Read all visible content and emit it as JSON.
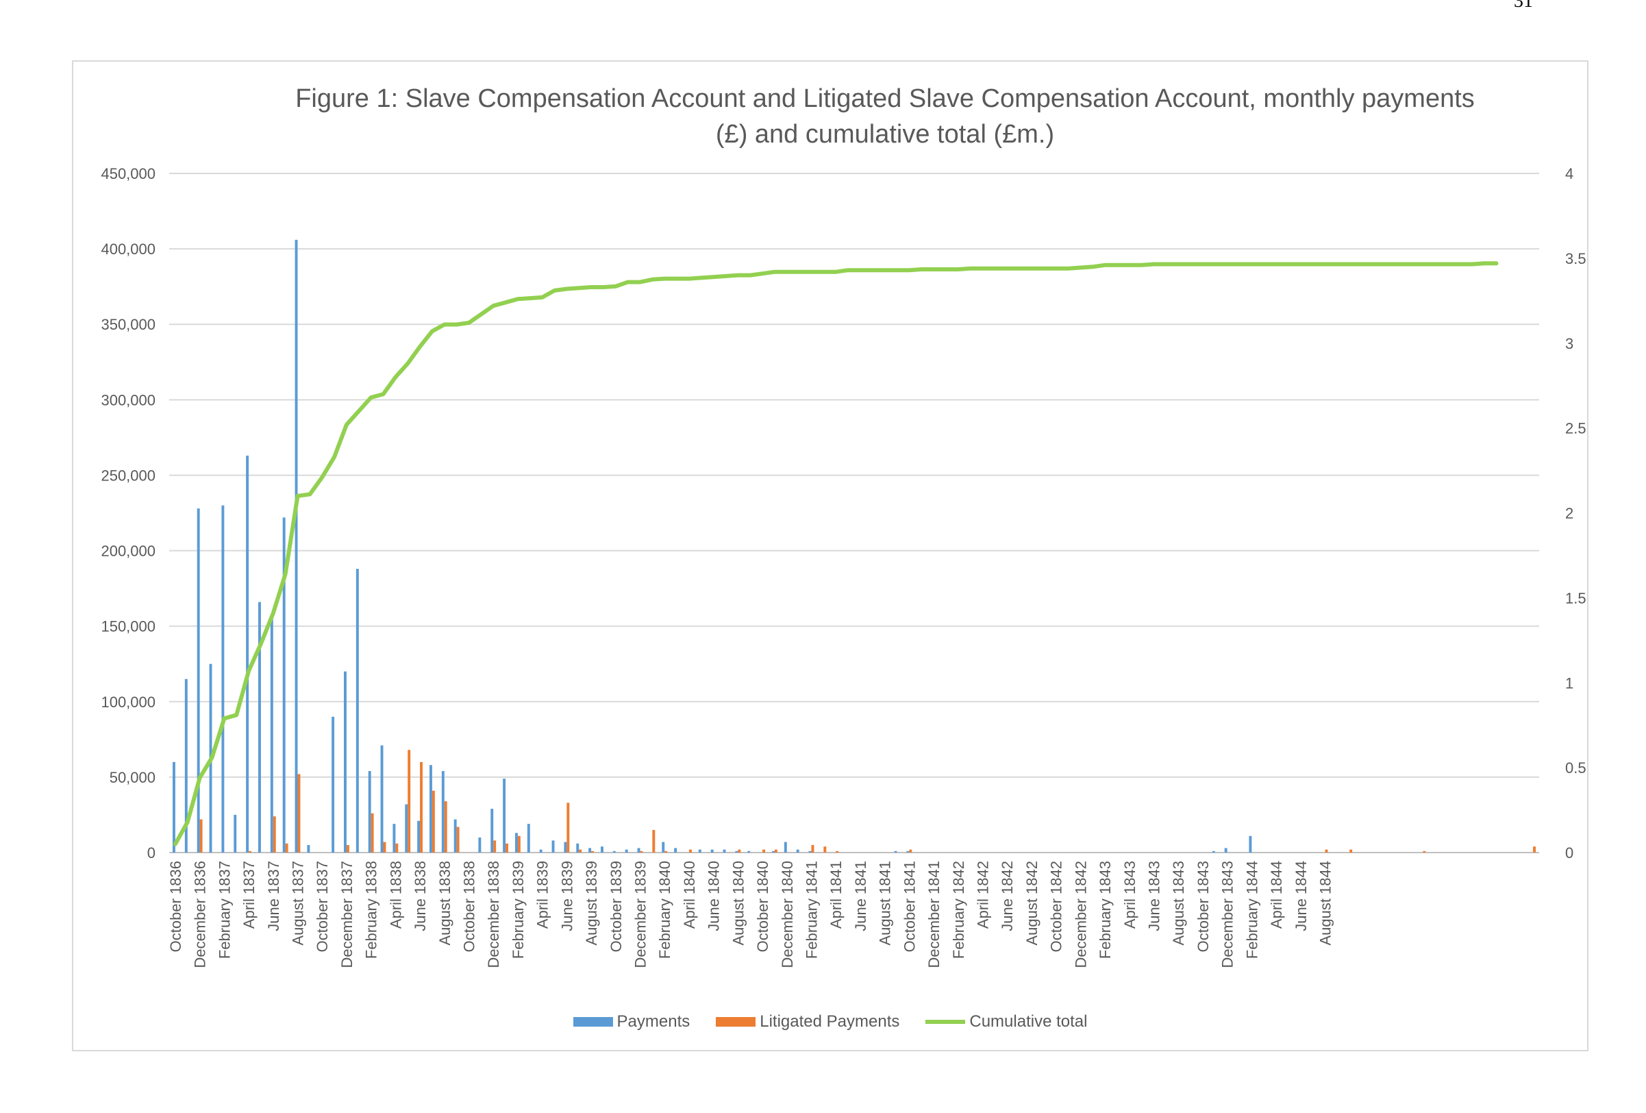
{
  "page_number": "31",
  "chart_data": {
    "type": "bar",
    "title_lines": [
      "Figure 1: Slave Compensation Account and Litigated Slave Compensation Account, monthly payments",
      "(£) and cumulative total (£m.)"
    ],
    "x_tick_labels": [
      "October 1836",
      "December 1836",
      "February 1837",
      "April 1837",
      "June 1837",
      "August 1837",
      "October 1837",
      "December 1837",
      "February 1838",
      "April 1838",
      "June 1838",
      "August 1838",
      "October 1838",
      "December 1838",
      "February 1839",
      "April 1839",
      "June 1839",
      "August 1839",
      "October 1839",
      "December 1839",
      "February 1840",
      "April 1840",
      "June 1840",
      "August 1840",
      "October 1840",
      "December 1840",
      "February 1841",
      "April 1841",
      "June 1841",
      "August 1841",
      "October 1841",
      "December 1841",
      "February 1842",
      "April 1842",
      "June 1842",
      "August 1842",
      "October 1842",
      "December 1842",
      "February 1843",
      "April 1843",
      "June 1843",
      "August 1843",
      "October 1843",
      "December 1843",
      "February 1844",
      "April 1844",
      "June 1844",
      "August 1844"
    ],
    "y_left": {
      "ylim": [
        0,
        450000
      ],
      "ticks": [
        "0",
        "50,000",
        "100,000",
        "150,000",
        "200,000",
        "250,000",
        "300,000",
        "350,000",
        "400,000",
        "450,000"
      ]
    },
    "y_right": {
      "ylim": [
        0,
        4
      ],
      "ticks": [
        "0",
        "0.5",
        "1",
        "1.5",
        "2",
        "2.5",
        "3",
        "3.5",
        "4"
      ]
    },
    "grid": "horizontal",
    "legend_position": "bottom",
    "series": [
      {
        "name": "Payments",
        "type": "bar",
        "axis": "left",
        "color": "#5b9bd5",
        "values": [
          60000,
          115000,
          228000,
          125000,
          230000,
          25000,
          263000,
          166000,
          155000,
          222000,
          406000,
          5000,
          0,
          90000,
          120000,
          188000,
          54000,
          71000,
          19000,
          32000,
          21000,
          58000,
          54000,
          22000,
          0,
          10000,
          29000,
          49000,
          13000,
          19000,
          2000,
          8000,
          7000,
          6000,
          3000,
          4000,
          1000,
          2000,
          3000,
          0,
          7000,
          3000,
          0,
          2000,
          2000,
          2000,
          1000,
          1000,
          0,
          1000,
          7000,
          2000,
          1000,
          0,
          0,
          0,
          0,
          0,
          0,
          1000,
          1000,
          0,
          0,
          0,
          0,
          0,
          0,
          0,
          0,
          0,
          0,
          0,
          0,
          0,
          0,
          0,
          0,
          0,
          0,
          0,
          0,
          0,
          0,
          0,
          0,
          1000,
          3000,
          0,
          11000,
          0,
          0,
          0,
          0,
          0,
          0,
          0,
          0,
          0,
          0,
          0,
          0,
          0,
          0,
          0,
          0,
          0,
          0,
          0,
          0,
          0,
          0,
          0
        ]
      },
      {
        "name": "Litigated Payments",
        "type": "bar",
        "axis": "left",
        "color": "#ed7d31",
        "values": [
          0,
          0,
          22000,
          0,
          0,
          0,
          1000,
          0,
          24000,
          6000,
          52000,
          0,
          0,
          0,
          5000,
          0,
          26000,
          7000,
          6000,
          68000,
          60000,
          41000,
          34000,
          17000,
          0,
          0,
          8000,
          6000,
          11000,
          0,
          0,
          0,
          33000,
          2000,
          1000,
          0,
          0,
          0,
          1000,
          15000,
          1000,
          0,
          2000,
          0,
          0,
          0,
          2000,
          0,
          2000,
          2000,
          0,
          0,
          5000,
          4000,
          1000,
          0,
          0,
          0,
          0,
          0,
          2000,
          0,
          0,
          0,
          0,
          0,
          0,
          0,
          0,
          0,
          0,
          0,
          0,
          0,
          0,
          0,
          0,
          0,
          0,
          0,
          0,
          0,
          0,
          0,
          0,
          0,
          0,
          0,
          0,
          0,
          0,
          0,
          0,
          0,
          2000,
          0,
          2000,
          0,
          0,
          0,
          0,
          0,
          1000,
          0,
          0,
          0,
          0,
          0,
          0,
          0,
          0,
          4000
        ]
      },
      {
        "name": "Cumulative total",
        "type": "line",
        "axis": "right",
        "color": "#92d050",
        "values": [
          0.05,
          0.18,
          0.44,
          0.56,
          0.79,
          0.81,
          1.07,
          1.23,
          1.41,
          1.64,
          2.1,
          2.11,
          2.21,
          2.33,
          2.52,
          2.6,
          2.68,
          2.7,
          2.8,
          2.88,
          2.98,
          3.07,
          3.11,
          3.11,
          3.12,
          3.17,
          3.22,
          3.24,
          3.26,
          3.265,
          3.27,
          3.31,
          3.32,
          3.325,
          3.33,
          3.33,
          3.335,
          3.36,
          3.36,
          3.375,
          3.38,
          3.38,
          3.38,
          3.385,
          3.39,
          3.395,
          3.4,
          3.4,
          3.41,
          3.42,
          3.42,
          3.42,
          3.42,
          3.42,
          3.42,
          3.43,
          3.43,
          3.43,
          3.43,
          3.43,
          3.43,
          3.435,
          3.435,
          3.435,
          3.435,
          3.44,
          3.44,
          3.44,
          3.44,
          3.44,
          3.44,
          3.44,
          3.44,
          3.44,
          3.445,
          3.45,
          3.46,
          3.46,
          3.46,
          3.46,
          3.465,
          3.465,
          3.465,
          3.465,
          3.465,
          3.465,
          3.465,
          3.465,
          3.465,
          3.465,
          3.465,
          3.465,
          3.465,
          3.465,
          3.465,
          3.465,
          3.465,
          3.465,
          3.465,
          3.465,
          3.465,
          3.465,
          3.465,
          3.465,
          3.465,
          3.465,
          3.465,
          3.47,
          3.47
        ]
      }
    ],
    "legend": [
      "Payments",
      "Litigated Payments",
      "Cumulative total"
    ]
  }
}
